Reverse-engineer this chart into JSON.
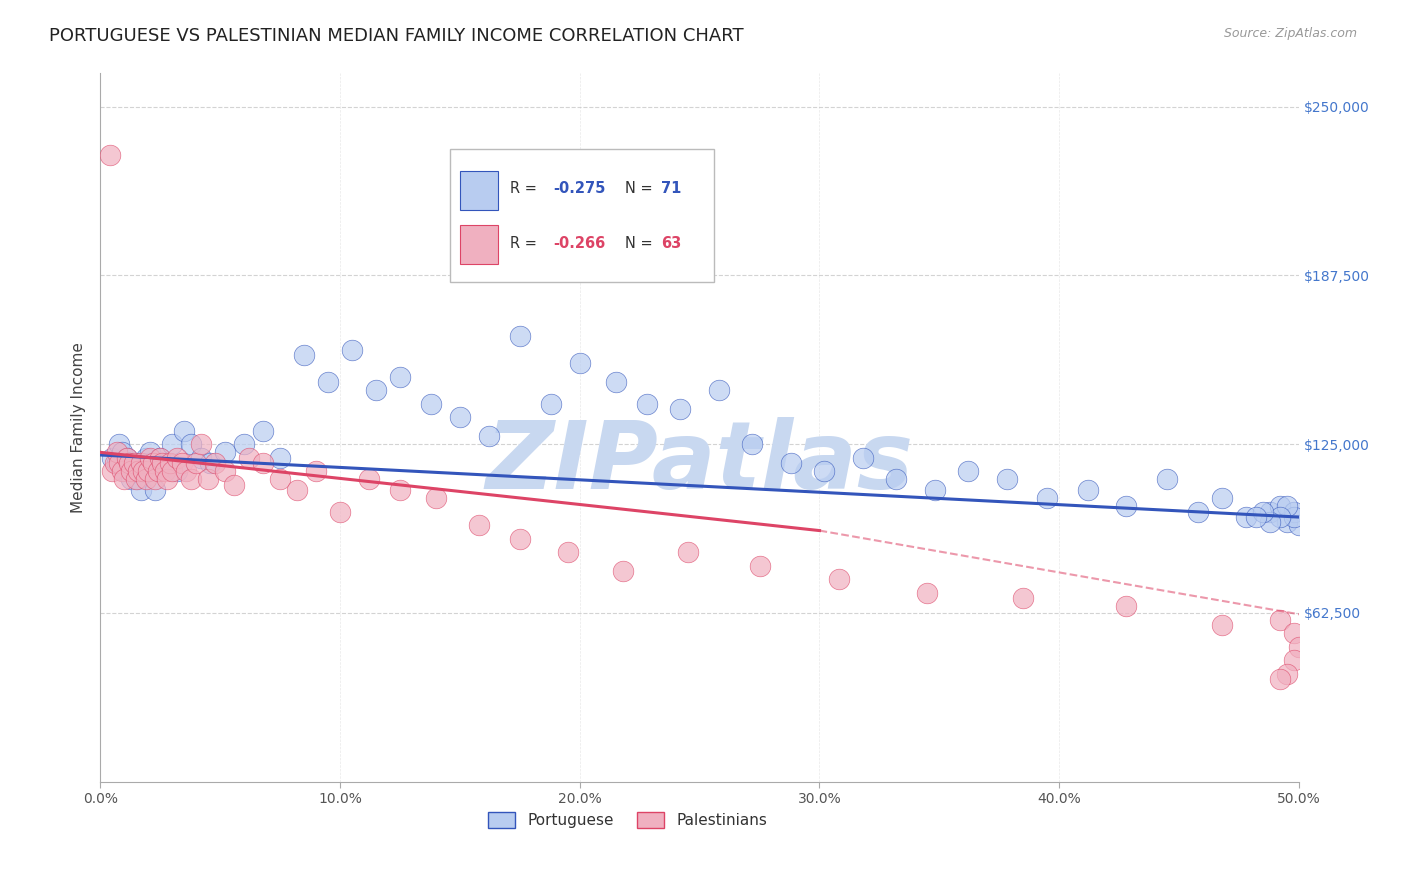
{
  "title": "PORTUGUESE VS PALESTINIAN MEDIAN FAMILY INCOME CORRELATION CHART",
  "source": "Source: ZipAtlas.com",
  "ylabel": "Median Family Income",
  "xlim": [
    0.0,
    0.5
  ],
  "ylim": [
    0,
    262500
  ],
  "yticks": [
    62500,
    125000,
    187500,
    250000
  ],
  "ytick_labels": [
    "$62,500",
    "$125,000",
    "$187,500",
    "$250,000"
  ],
  "xticks": [
    0.0,
    0.1,
    0.2,
    0.3,
    0.4,
    0.5
  ],
  "xtick_labels": [
    "0.0%",
    "10.0%",
    "20.0%",
    "30.0%",
    "40.0%",
    "50.0%"
  ],
  "bg_color": "#ffffff",
  "grid_color": "#c8c8c8",
  "portuguese_color": "#b8ccf0",
  "palestinian_color": "#f0b0c0",
  "portuguese_line_color": "#3355bb",
  "palestinian_line_color": "#dd4466",
  "ytick_color": "#4477cc",
  "portuguese_x": [
    0.005,
    0.007,
    0.008,
    0.009,
    0.01,
    0.011,
    0.012,
    0.013,
    0.014,
    0.015,
    0.016,
    0.017,
    0.018,
    0.019,
    0.02,
    0.021,
    0.022,
    0.023,
    0.025,
    0.028,
    0.03,
    0.032,
    0.035,
    0.038,
    0.042,
    0.046,
    0.052,
    0.06,
    0.068,
    0.075,
    0.085,
    0.095,
    0.105,
    0.115,
    0.125,
    0.138,
    0.15,
    0.162,
    0.175,
    0.188,
    0.2,
    0.215,
    0.228,
    0.242,
    0.258,
    0.272,
    0.288,
    0.302,
    0.318,
    0.332,
    0.348,
    0.362,
    0.378,
    0.395,
    0.412,
    0.428,
    0.445,
    0.458,
    0.468,
    0.478,
    0.488,
    0.492,
    0.495,
    0.498,
    0.5,
    0.498,
    0.495,
    0.492,
    0.488,
    0.485,
    0.482
  ],
  "portuguese_y": [
    120000,
    118000,
    125000,
    122000,
    115000,
    120000,
    118000,
    112000,
    115000,
    118000,
    112000,
    108000,
    115000,
    120000,
    118000,
    122000,
    115000,
    108000,
    120000,
    118000,
    125000,
    115000,
    130000,
    125000,
    120000,
    118000,
    122000,
    125000,
    130000,
    120000,
    158000,
    148000,
    160000,
    145000,
    150000,
    140000,
    135000,
    128000,
    165000,
    140000,
    155000,
    148000,
    140000,
    138000,
    145000,
    125000,
    118000,
    115000,
    120000,
    112000,
    108000,
    115000,
    112000,
    105000,
    108000,
    102000,
    112000,
    100000,
    105000,
    98000,
    100000,
    102000,
    96000,
    100000,
    95000,
    98000,
    102000,
    98000,
    96000,
    100000,
    98000
  ],
  "palestinian_x": [
    0.004,
    0.005,
    0.006,
    0.007,
    0.008,
    0.009,
    0.01,
    0.011,
    0.012,
    0.013,
    0.014,
    0.015,
    0.016,
    0.017,
    0.018,
    0.019,
    0.02,
    0.021,
    0.022,
    0.023,
    0.024,
    0.025,
    0.026,
    0.027,
    0.028,
    0.029,
    0.03,
    0.032,
    0.034,
    0.036,
    0.038,
    0.04,
    0.042,
    0.045,
    0.048,
    0.052,
    0.056,
    0.062,
    0.068,
    0.075,
    0.082,
    0.09,
    0.1,
    0.112,
    0.125,
    0.14,
    0.158,
    0.175,
    0.195,
    0.218,
    0.245,
    0.275,
    0.308,
    0.345,
    0.385,
    0.428,
    0.468,
    0.492,
    0.498,
    0.5,
    0.498,
    0.495,
    0.492
  ],
  "palestinian_y": [
    232000,
    115000,
    118000,
    122000,
    118000,
    115000,
    112000,
    120000,
    118000,
    115000,
    118000,
    112000,
    115000,
    118000,
    115000,
    112000,
    115000,
    120000,
    118000,
    112000,
    115000,
    120000,
    118000,
    115000,
    112000,
    118000,
    115000,
    120000,
    118000,
    115000,
    112000,
    118000,
    125000,
    112000,
    118000,
    115000,
    110000,
    120000,
    118000,
    112000,
    108000,
    115000,
    100000,
    112000,
    108000,
    105000,
    95000,
    90000,
    85000,
    78000,
    85000,
    80000,
    75000,
    70000,
    68000,
    65000,
    58000,
    60000,
    55000,
    50000,
    45000,
    40000,
    38000
  ],
  "watermark": "ZIPatlas",
  "watermark_color": "#c8d8f0",
  "title_fontsize": 13,
  "axis_label_fontsize": 11,
  "tick_fontsize": 10,
  "legend_label1": "Portuguese",
  "legend_label2": "Palestinians"
}
